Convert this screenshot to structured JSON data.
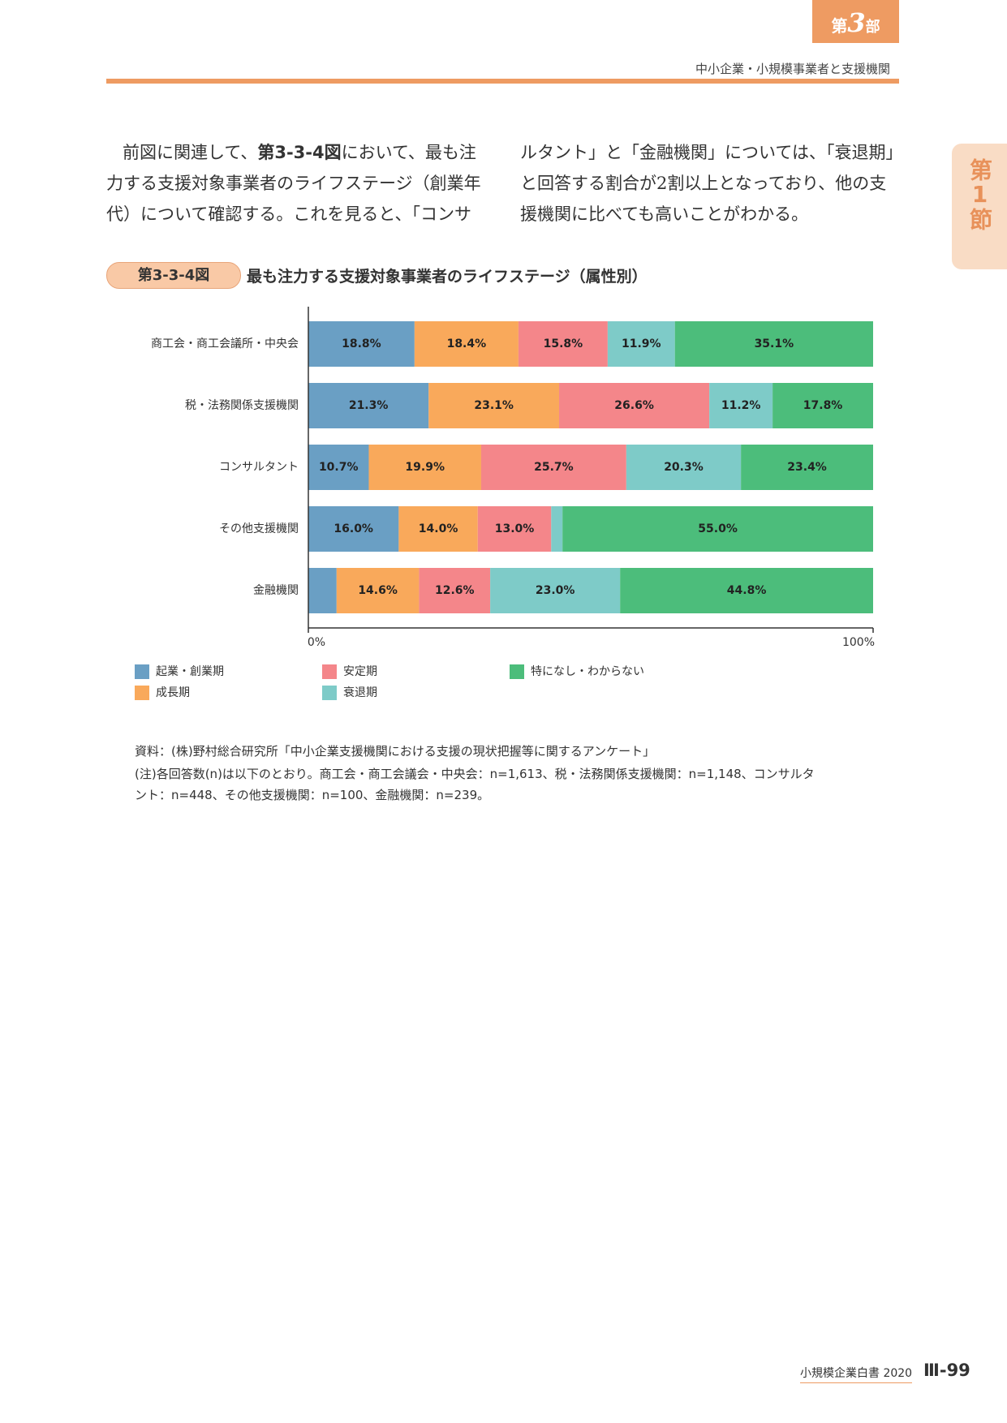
{
  "header": {
    "part_prefix": "第",
    "part_number": "3",
    "part_suffix": "部",
    "section": "中小企業・小規模事業者と支援機関"
  },
  "side_tab": "第1節",
  "body": {
    "lead": "前図に関連して、",
    "ref": "第3-3-4図",
    "lines": [
      "において、最も注",
      "力する支援対象事業者のライフステージ（創業年",
      "代）について確認する。これを見ると、「コンサ",
      "ルタント」と「金融機関」については、「衰退期」",
      "と回答する割合が2割以上となっており、他の支",
      "援機関に比べても高いことがわかる。"
    ]
  },
  "figure": {
    "label": "第3-3-4図",
    "title": "最も注力する支援対象事業者のライフステージ（属性別）"
  },
  "chart_data": {
    "type": "stacked-barh",
    "categories": [
      "商工会・商工会議所・中央会",
      "税・法務関係支援機関",
      "コンサルタント",
      "その他支援機関",
      "金融機関"
    ],
    "series": [
      {
        "name": "起業・創業期",
        "color": "#6a9fc4",
        "values": [
          18.8,
          21.3,
          10.7,
          16.0,
          5.0
        ],
        "value_labels": [
          "18.8%",
          "21.3%",
          "10.7%",
          "16.0%",
          null
        ]
      },
      {
        "name": "成長期",
        "color": "#f9a95b",
        "values": [
          18.4,
          23.1,
          19.9,
          14.0,
          14.6
        ],
        "value_labels": [
          "18.4%",
          "23.1%",
          "19.9%",
          "14.0%",
          "14.6%"
        ]
      },
      {
        "name": "安定期",
        "color": "#f4868a",
        "values": [
          15.8,
          26.6,
          25.7,
          13.0,
          12.6
        ],
        "value_labels": [
          "15.8%",
          "26.6%",
          "25.7%",
          "13.0%",
          "12.6%"
        ]
      },
      {
        "name": "衰退期",
        "color": "#7ecbc8",
        "values": [
          11.9,
          11.2,
          20.3,
          2.0,
          23.0
        ],
        "value_labels": [
          "11.9%",
          "11.2%",
          "20.3%",
          null,
          "23.0%"
        ]
      },
      {
        "name": "特になし・わからない",
        "color": "#4cbd7b",
        "values": [
          35.1,
          17.8,
          23.4,
          55.0,
          44.8
        ],
        "value_labels": [
          "35.1%",
          "17.8%",
          "23.4%",
          "55.0%",
          "44.8%"
        ]
      }
    ],
    "xlim": [
      0,
      100
    ],
    "xticks": [
      {
        "value": 0,
        "label": "0%"
      },
      {
        "value": 100,
        "label": "100%"
      }
    ]
  },
  "notes": {
    "source": "資料：(株)野村総合研究所「中小企業支援機関における支援の現状把握等に関するアンケート」",
    "lines": [
      "(注)各回答数(n)は以下のとおり。商工会・商工会議会・中央会：n=1,613、税・法務関係支援機関：n=1,148、コンサルタ",
      "ント：n=448、その他支援機関：n=100、金融機関：n=239。"
    ]
  },
  "footer": {
    "book": "小規模企業白書",
    "year": "2020",
    "page": "Ⅲ-99"
  }
}
